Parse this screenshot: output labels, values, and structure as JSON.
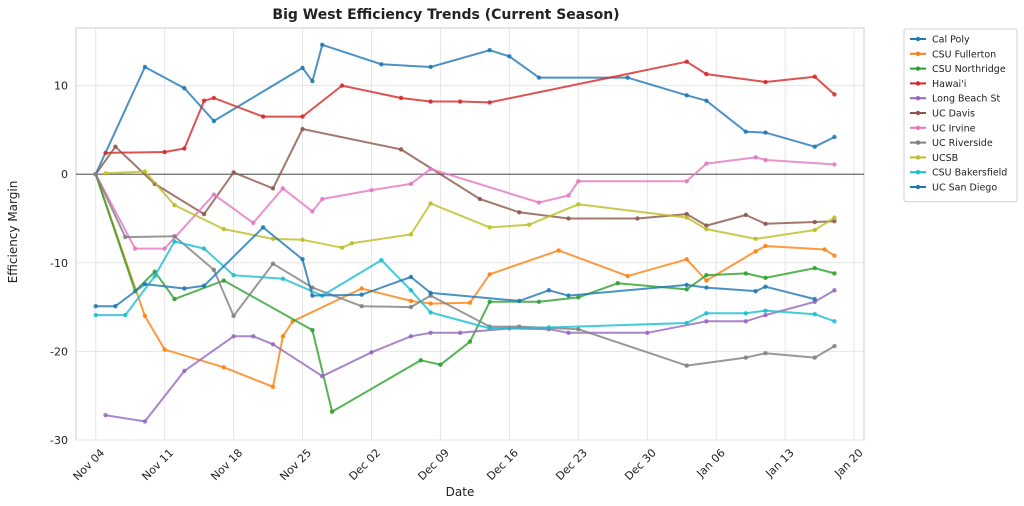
{
  "chart_data": {
    "type": "line",
    "title": "Big West Efficiency Trends (Current Season)",
    "xlabel": "Date",
    "ylabel": "Efficiency Margin",
    "x_axis": {
      "kind": "date",
      "range": [
        "2024-11-02",
        "2025-01-21"
      ],
      "ticks": [
        {
          "date": "2024-11-04",
          "label": "Nov 04"
        },
        {
          "date": "2024-11-11",
          "label": "Nov 11"
        },
        {
          "date": "2024-11-18",
          "label": "Nov 18"
        },
        {
          "date": "2024-11-25",
          "label": "Nov 25"
        },
        {
          "date": "2024-12-02",
          "label": "Dec 02"
        },
        {
          "date": "2024-12-09",
          "label": "Dec 09"
        },
        {
          "date": "2024-12-16",
          "label": "Dec 16"
        },
        {
          "date": "2024-12-23",
          "label": "Dec 23"
        },
        {
          "date": "2024-12-30",
          "label": "Dec 30"
        },
        {
          "date": "2025-01-06",
          "label": "Jan 06"
        },
        {
          "date": "2025-01-13",
          "label": "Jan 13"
        },
        {
          "date": "2025-01-20",
          "label": "Jan 20"
        }
      ]
    },
    "y_axis": {
      "range": [
        -30,
        16.5
      ],
      "ticks": [
        -30,
        -20,
        -10,
        0,
        10
      ]
    },
    "zero_line": true,
    "grid": true,
    "legend": {
      "position": "outside-right"
    },
    "series": [
      {
        "name": "Cal Poly",
        "color": "#1f77b4",
        "points": [
          [
            "2024-11-04",
            0
          ],
          [
            "2024-11-09",
            12.1
          ],
          [
            "2024-11-13",
            9.7
          ],
          [
            "2024-11-16",
            6.0
          ],
          [
            "2024-11-25",
            12.0
          ],
          [
            "2024-11-26",
            10.5
          ],
          [
            "2024-11-27",
            14.6
          ],
          [
            "2024-12-03",
            12.4
          ],
          [
            "2024-12-08",
            12.1
          ],
          [
            "2024-12-14",
            14.0
          ],
          [
            "2024-12-16",
            13.3
          ],
          [
            "2024-12-19",
            10.9
          ],
          [
            "2024-12-28",
            10.9
          ],
          [
            "2025-01-03",
            8.9
          ],
          [
            "2025-01-05",
            8.3
          ],
          [
            "2025-01-09",
            4.8
          ],
          [
            "2025-01-11",
            4.7
          ],
          [
            "2025-01-16",
            3.1
          ],
          [
            "2025-01-18",
            4.2
          ]
        ]
      },
      {
        "name": "CSU Fullerton",
        "color": "#ff7f0e",
        "points": [
          [
            "2024-11-04",
            0
          ],
          [
            "2024-11-09",
            -16.0
          ],
          [
            "2024-11-11",
            -19.8
          ],
          [
            "2024-11-17",
            -21.8
          ],
          [
            "2024-11-22",
            -24.0
          ],
          [
            "2024-11-23",
            -18.3
          ],
          [
            "2024-11-24",
            -16.6
          ],
          [
            "2024-12-01",
            -12.9
          ],
          [
            "2024-12-06",
            -14.3
          ],
          [
            "2024-12-08",
            -14.6
          ],
          [
            "2024-12-12",
            -14.5
          ],
          [
            "2024-12-14",
            -11.3
          ],
          [
            "2024-12-21",
            -8.6
          ],
          [
            "2024-12-28",
            -11.5
          ],
          [
            "2025-01-03",
            -9.6
          ],
          [
            "2025-01-05",
            -12.0
          ],
          [
            "2025-01-10",
            -8.7
          ],
          [
            "2025-01-11",
            -8.1
          ],
          [
            "2025-01-17",
            -8.5
          ],
          [
            "2025-01-18",
            -9.2
          ]
        ]
      },
      {
        "name": "CSU Northridge",
        "color": "#2ca02c",
        "points": [
          [
            "2024-11-04",
            0
          ],
          [
            "2024-11-08",
            -13.2
          ],
          [
            "2024-11-10",
            -11.0
          ],
          [
            "2024-11-12",
            -14.1
          ],
          [
            "2024-11-17",
            -12.0
          ],
          [
            "2024-11-26",
            -17.6
          ],
          [
            "2024-11-28",
            -26.8
          ],
          [
            "2024-12-07",
            -21.0
          ],
          [
            "2024-12-09",
            -21.5
          ],
          [
            "2024-12-12",
            -18.9
          ],
          [
            "2024-12-14",
            -14.4
          ],
          [
            "2024-12-19",
            -14.4
          ],
          [
            "2024-12-23",
            -13.9
          ],
          [
            "2024-12-27",
            -12.3
          ],
          [
            "2025-01-03",
            -13.0
          ],
          [
            "2025-01-05",
            -11.4
          ],
          [
            "2025-01-09",
            -11.2
          ],
          [
            "2025-01-11",
            -11.7
          ],
          [
            "2025-01-16",
            -10.6
          ],
          [
            "2025-01-18",
            -11.2
          ]
        ]
      },
      {
        "name": "Hawai'i",
        "color": "#d62728",
        "points": [
          [
            "2024-11-05",
            2.4
          ],
          [
            "2024-11-11",
            2.5
          ],
          [
            "2024-11-13",
            2.9
          ],
          [
            "2024-11-15",
            8.3
          ],
          [
            "2024-11-16",
            8.6
          ],
          [
            "2024-11-21",
            6.5
          ],
          [
            "2024-11-25",
            6.5
          ],
          [
            "2024-11-29",
            10.0
          ],
          [
            "2024-12-05",
            8.6
          ],
          [
            "2024-12-08",
            8.2
          ],
          [
            "2024-12-11",
            8.2
          ],
          [
            "2024-12-14",
            8.1
          ],
          [
            "2025-01-03",
            12.7
          ],
          [
            "2025-01-05",
            11.3
          ],
          [
            "2025-01-11",
            10.4
          ],
          [
            "2025-01-16",
            11.0
          ],
          [
            "2025-01-18",
            9.0
          ]
        ]
      },
      {
        "name": "Long Beach St",
        "color": "#9467bd",
        "points": [
          [
            "2024-11-05",
            -27.2
          ],
          [
            "2024-11-09",
            -27.9
          ],
          [
            "2024-11-13",
            -22.2
          ],
          [
            "2024-11-18",
            -18.3
          ],
          [
            "2024-11-20",
            -18.3
          ],
          [
            "2024-11-22",
            -19.2
          ],
          [
            "2024-11-27",
            -22.8
          ],
          [
            "2024-12-02",
            -20.1
          ],
          [
            "2024-12-06",
            -18.3
          ],
          [
            "2024-12-08",
            -17.9
          ],
          [
            "2024-12-11",
            -17.9
          ],
          [
            "2024-12-16",
            -17.4
          ],
          [
            "2024-12-20",
            -17.5
          ],
          [
            "2024-12-22",
            -17.9
          ],
          [
            "2024-12-30",
            -17.9
          ],
          [
            "2025-01-05",
            -16.6
          ],
          [
            "2025-01-09",
            -16.6
          ],
          [
            "2025-01-11",
            -15.9
          ],
          [
            "2025-01-16",
            -14.4
          ],
          [
            "2025-01-18",
            -13.1
          ]
        ]
      },
      {
        "name": "UC Davis",
        "color": "#8c564b",
        "points": [
          [
            "2024-11-04",
            0
          ],
          [
            "2024-11-06",
            3.1
          ],
          [
            "2024-11-10",
            -1.1
          ],
          [
            "2024-11-15",
            -4.5
          ],
          [
            "2024-11-18",
            0.2
          ],
          [
            "2024-11-22",
            -1.6
          ],
          [
            "2024-11-25",
            5.1
          ],
          [
            "2024-12-05",
            2.8
          ],
          [
            "2024-12-13",
            -2.8
          ],
          [
            "2024-12-17",
            -4.3
          ],
          [
            "2024-12-22",
            -5.0
          ],
          [
            "2024-12-29",
            -5.0
          ],
          [
            "2025-01-03",
            -4.5
          ],
          [
            "2025-01-05",
            -5.8
          ],
          [
            "2025-01-09",
            -4.6
          ],
          [
            "2025-01-11",
            -5.6
          ],
          [
            "2025-01-16",
            -5.4
          ],
          [
            "2025-01-18",
            -5.3
          ]
        ]
      },
      {
        "name": "UC Irvine",
        "color": "#e377c2",
        "points": [
          [
            "2024-11-04",
            0
          ],
          [
            "2024-11-08",
            -8.4
          ],
          [
            "2024-11-11",
            -8.4
          ],
          [
            "2024-11-16",
            -2.3
          ],
          [
            "2024-11-20",
            -5.5
          ],
          [
            "2024-11-23",
            -1.6
          ],
          [
            "2024-11-26",
            -4.2
          ],
          [
            "2024-11-27",
            -2.8
          ],
          [
            "2024-12-02",
            -1.8
          ],
          [
            "2024-12-06",
            -1.1
          ],
          [
            "2024-12-08",
            0.6
          ],
          [
            "2024-12-19",
            -3.2
          ],
          [
            "2024-12-22",
            -2.4
          ],
          [
            "2024-12-23",
            -0.8
          ],
          [
            "2025-01-03",
            -0.8
          ],
          [
            "2025-01-05",
            1.2
          ],
          [
            "2025-01-10",
            1.9
          ],
          [
            "2025-01-11",
            1.6
          ],
          [
            "2025-01-18",
            1.1
          ]
        ]
      },
      {
        "name": "UC Riverside",
        "color": "#7f7f7f",
        "points": [
          [
            "2024-11-04",
            0
          ],
          [
            "2024-11-07",
            -7.1
          ],
          [
            "2024-11-12",
            -7.0
          ],
          [
            "2024-11-16",
            -10.8
          ],
          [
            "2024-11-18",
            -16.0
          ],
          [
            "2024-11-22",
            -10.1
          ],
          [
            "2024-11-26",
            -12.8
          ],
          [
            "2024-12-01",
            -14.9
          ],
          [
            "2024-12-06",
            -15.0
          ],
          [
            "2024-12-08",
            -13.7
          ],
          [
            "2024-12-14",
            -17.2
          ],
          [
            "2024-12-17",
            -17.2
          ],
          [
            "2024-12-23",
            -17.5
          ],
          [
            "2025-01-03",
            -21.6
          ],
          [
            "2025-01-09",
            -20.7
          ],
          [
            "2025-01-11",
            -20.2
          ],
          [
            "2025-01-16",
            -20.7
          ],
          [
            "2025-01-18",
            -19.4
          ]
        ]
      },
      {
        "name": "UCSB",
        "color": "#bcbd22",
        "points": [
          [
            "2024-11-05",
            0.1
          ],
          [
            "2024-11-09",
            0.3
          ],
          [
            "2024-11-12",
            -3.5
          ],
          [
            "2024-11-17",
            -6.2
          ],
          [
            "2024-11-22",
            -7.3
          ],
          [
            "2024-11-25",
            -7.4
          ],
          [
            "2024-11-29",
            -8.3
          ],
          [
            "2024-11-30",
            -7.8
          ],
          [
            "2024-12-06",
            -6.8
          ],
          [
            "2024-12-08",
            -3.3
          ],
          [
            "2024-12-14",
            -6.0
          ],
          [
            "2024-12-18",
            -5.7
          ],
          [
            "2024-12-23",
            -3.4
          ],
          [
            "2025-01-03",
            -4.9
          ],
          [
            "2025-01-05",
            -6.2
          ],
          [
            "2025-01-10",
            -7.3
          ],
          [
            "2025-01-16",
            -6.3
          ],
          [
            "2025-01-18",
            -4.9
          ]
        ]
      },
      {
        "name": "CSU Bakersfield",
        "color": "#17becf",
        "points": [
          [
            "2024-11-04",
            -15.9
          ],
          [
            "2024-11-07",
            -15.9
          ],
          [
            "2024-11-10",
            -11.5
          ],
          [
            "2024-11-12",
            -7.6
          ],
          [
            "2024-11-15",
            -8.4
          ],
          [
            "2024-11-18",
            -11.4
          ],
          [
            "2024-11-23",
            -11.8
          ],
          [
            "2024-11-27",
            -13.7
          ],
          [
            "2024-12-03",
            -9.7
          ],
          [
            "2024-12-06",
            -13.1
          ],
          [
            "2024-12-08",
            -15.6
          ],
          [
            "2024-12-14",
            -17.4
          ],
          [
            "2024-12-20",
            -17.3
          ],
          [
            "2025-01-03",
            -16.8
          ],
          [
            "2025-01-05",
            -15.7
          ],
          [
            "2025-01-09",
            -15.7
          ],
          [
            "2025-01-11",
            -15.4
          ],
          [
            "2025-01-16",
            -15.8
          ],
          [
            "2025-01-18",
            -16.6
          ]
        ]
      },
      {
        "name": "UC San Diego",
        "color": "#1f77b4",
        "points": [
          [
            "2024-11-04",
            -14.9
          ],
          [
            "2024-11-06",
            -14.9
          ],
          [
            "2024-11-09",
            -12.4
          ],
          [
            "2024-11-13",
            -12.9
          ],
          [
            "2024-11-15",
            -12.6
          ],
          [
            "2024-11-21",
            -6.0
          ],
          [
            "2024-11-25",
            -9.6
          ],
          [
            "2024-11-26",
            -13.7
          ],
          [
            "2024-12-01",
            -13.6
          ],
          [
            "2024-12-06",
            -11.6
          ],
          [
            "2024-12-08",
            -13.4
          ],
          [
            "2024-12-17",
            -14.3
          ],
          [
            "2024-12-20",
            -13.1
          ],
          [
            "2024-12-22",
            -13.7
          ],
          [
            "2025-01-03",
            -12.5
          ],
          [
            "2025-01-05",
            -12.8
          ],
          [
            "2025-01-10",
            -13.2
          ],
          [
            "2025-01-11",
            -12.7
          ],
          [
            "2025-01-16",
            -14.1
          ]
        ]
      }
    ]
  }
}
